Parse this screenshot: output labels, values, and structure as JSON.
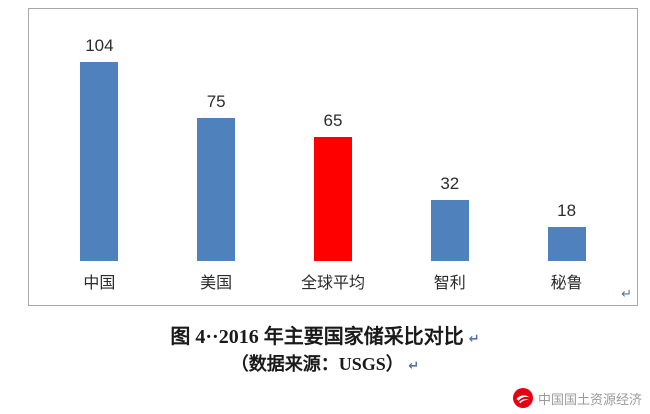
{
  "chart_data": {
    "type": "bar",
    "title": "2016 年主要国家储采比对比",
    "categories": [
      "中国",
      "美国",
      "全球平均",
      "智利",
      "秘鲁"
    ],
    "values": [
      104,
      75,
      65,
      32,
      18
    ],
    "colors": [
      "#4f81bd",
      "#4f81bd",
      "#ff0000",
      "#4f81bd",
      "#4f81bd"
    ],
    "xlabel": "",
    "ylabel": "",
    "ylim": [
      0,
      110
    ],
    "grid": false,
    "legend": false,
    "highlight_category": "全球平均",
    "highlight_color": "#ff0000",
    "bar_color": "#4f81bd"
  },
  "caption": {
    "figure_label": "图 4··2016 年主要国家储采比对比",
    "source": "（数据来源：USGS）"
  },
  "marks": {
    "line_break": "↵"
  },
  "watermark": {
    "text": "中国国土资源经济",
    "logo_color": "#e60012"
  }
}
